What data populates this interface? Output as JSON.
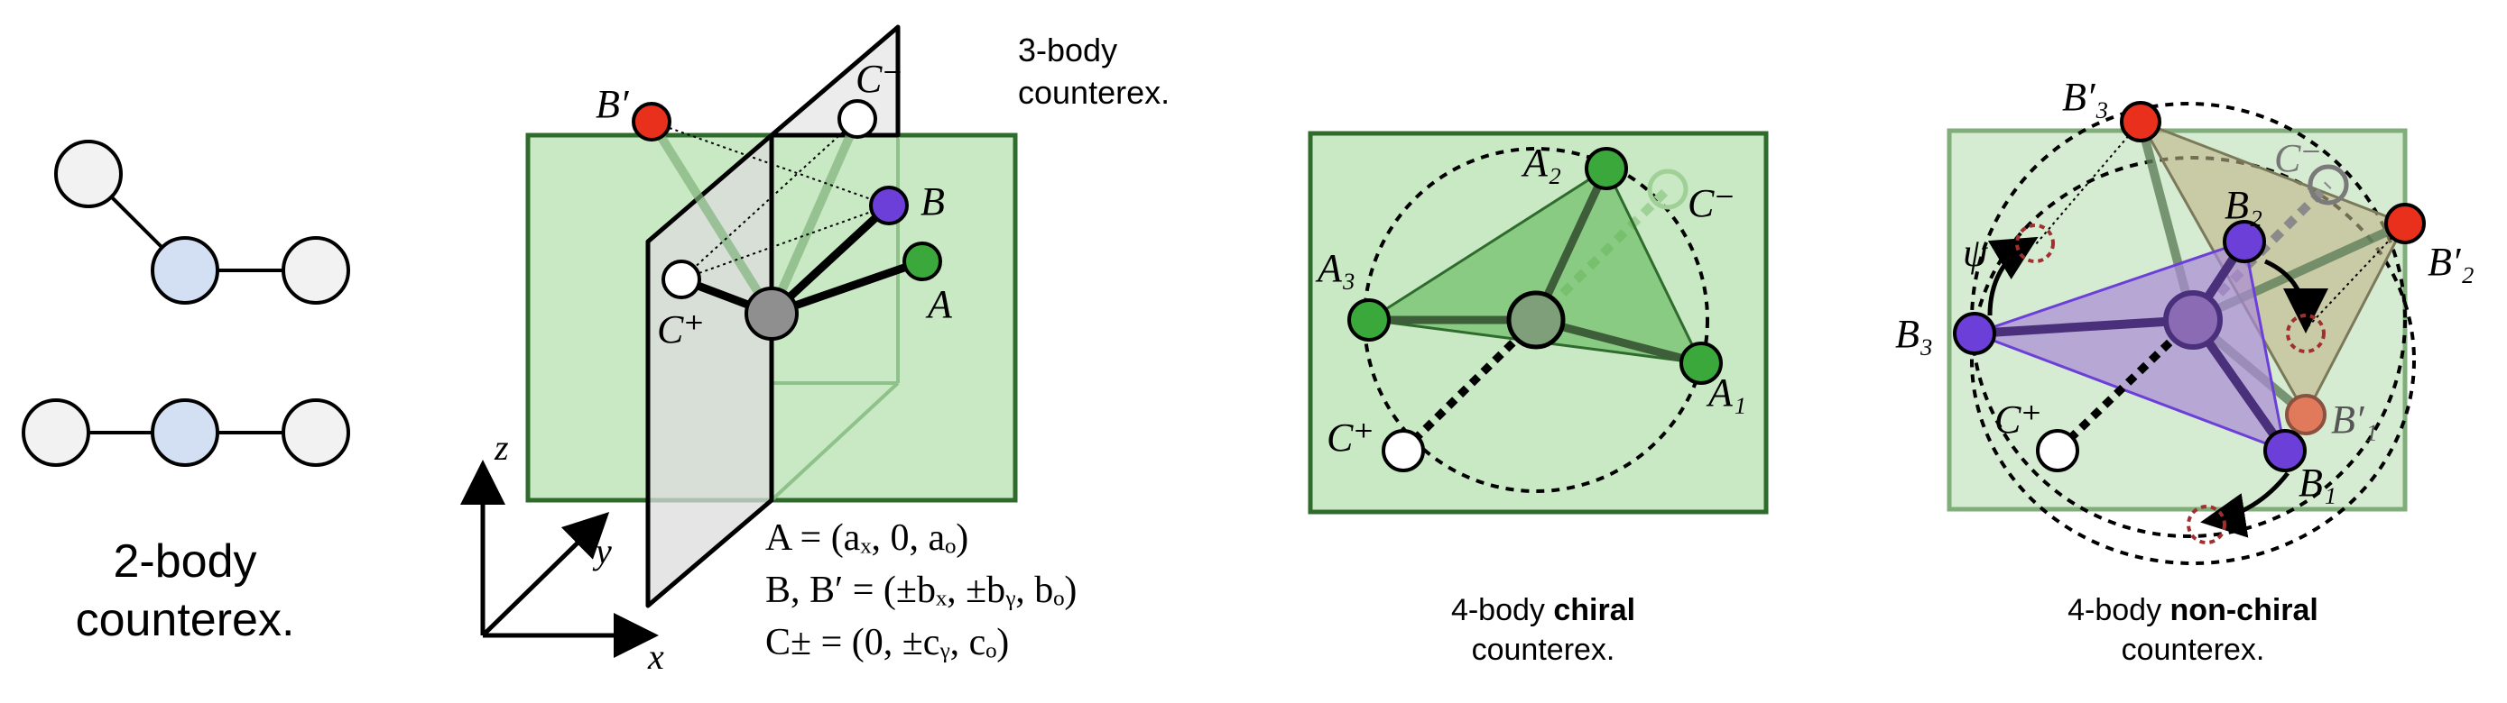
{
  "panel1": {
    "caption_line1": "2-body",
    "caption_line2": "counterex."
  },
  "panel2": {
    "title_line1": "3-body",
    "title_line2": "counterex.",
    "labels": {
      "B_prime": "B′",
      "B": "B",
      "A": "A",
      "C_plus": "C⁺",
      "C_minus": "C⁻"
    },
    "axes": {
      "x": "x",
      "y": "y",
      "z": "z"
    },
    "equations": [
      "A = (aₓ, 0, a_z)",
      "B, B′ = (±bₓ, ±b_y, b_z)",
      "C^± = (0, ±c_y, c_z)"
    ],
    "eq_display": [
      "A = (aₓ, 0, aₒ)",
      "B, B′ = (±bₓ, ±bᵧ, bₒ)",
      "C± = (0, ±cᵧ, cₒ)"
    ]
  },
  "panel3": {
    "caption_pre": "4-body ",
    "caption_bold": "chiral",
    "caption_line2": "counterex.",
    "labels": {
      "A1": "A₁",
      "A2": "A₂",
      "A3": "A₃",
      "C_plus": "C⁺",
      "C_minus": "C⁻"
    }
  },
  "panel4": {
    "caption_pre": "4-body ",
    "caption_bold": "non-chiral",
    "caption_line2": "counterex.",
    "labels": {
      "B1": "B₁",
      "B2": "B₂",
      "B3": "B₃",
      "B1p": "B′₁",
      "B2p": "B′₂",
      "B3p": "B′₃",
      "C_plus": "C⁺",
      "C_minus": "C⁻",
      "psi": "ψ"
    }
  },
  "colors": {
    "green_fill": "#c9e8c4",
    "green_border": "#2e6b2c",
    "node_green": "#3aa83a",
    "node_purple": "#6b3fd8",
    "node_red": "#e8301c",
    "node_blue": "#d3e0f3",
    "node_gray": "#8f8f8f",
    "dark_red_dashed": "#a03030",
    "purple_fill": "#a98ad6",
    "tan_fill": "#c7bf9a"
  }
}
